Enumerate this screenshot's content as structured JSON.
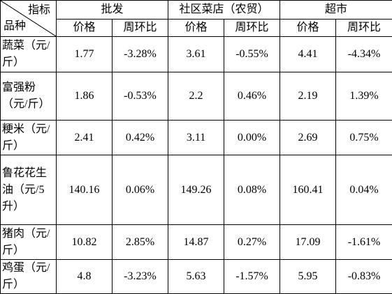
{
  "table": {
    "indicator": "指标",
    "variety": "品种",
    "groups": [
      "批发",
      "社区菜店（农贸）",
      "超市"
    ],
    "subheaders": [
      "价格",
      "周环比",
      "价格",
      "周环比",
      "价格",
      "周环比"
    ],
    "rows": [
      [
        "蔬菜（元/斤）",
        "1.77",
        "-3.28%",
        "3.61",
        "-0.55%",
        "4.41",
        "-4.34%"
      ],
      [
        "富强粉（元/斤）",
        "1.86",
        "-0.53%",
        "2.2",
        "0.46%",
        "2.19",
        "1.39%"
      ],
      [
        "粳米（元/斤）",
        "2.41",
        "0.42%",
        "3.11",
        "0.00%",
        "2.69",
        "0.75%"
      ],
      [
        "鲁花花生油（元/5升）",
        "140.16",
        "0.06%",
        "149.26",
        "0.08%",
        "160.41",
        "0.04%"
      ],
      [
        "猪肉（元/斤）",
        "10.82",
        "2.85%",
        "14.87",
        "0.27%",
        "17.09",
        "-1.61%"
      ],
      [
        "鸡蛋（元/斤）",
        "4.8",
        "-3.23%",
        "5.63",
        "-1.57%",
        "5.95",
        "-0.83%"
      ]
    ]
  }
}
